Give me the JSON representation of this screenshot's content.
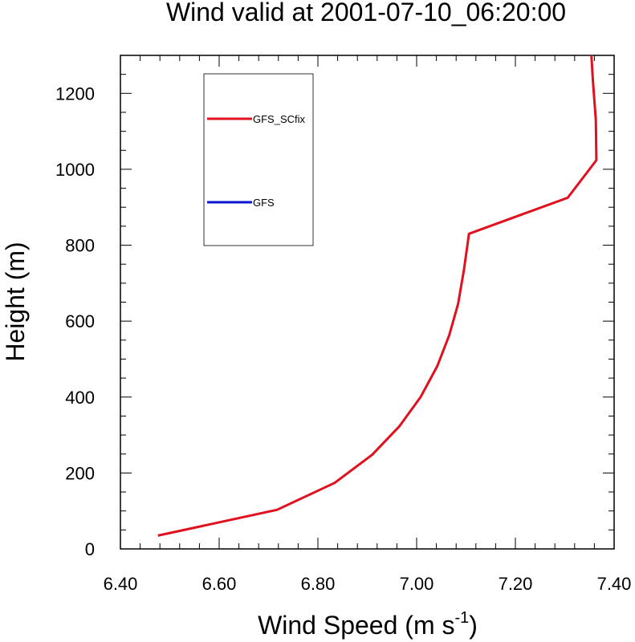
{
  "chart_data": {
    "type": "line",
    "title": "Wind valid at 2001-07-10_06:20:00",
    "xlabel": "Wind Speed (m s",
    "xlabel_sup": "-1",
    "xlabel_end": ")",
    "ylabel": "Height (m)",
    "xlim": [
      6.4,
      7.4
    ],
    "ylim": [
      0,
      1300
    ],
    "xticks": [
      6.4,
      6.6,
      6.8,
      7.0,
      7.2,
      7.4
    ],
    "xtick_labels": [
      "6.40",
      "6.60",
      "6.80",
      "7.00",
      "7.20",
      "7.40"
    ],
    "yticks": [
      0,
      200,
      400,
      600,
      800,
      1000,
      1200
    ],
    "ytick_labels": [
      "0",
      "200",
      "400",
      "600",
      "800",
      "1000",
      "1200"
    ],
    "grid": false,
    "legend_position": "top-left",
    "series": [
      {
        "name": "GFS_SCfix",
        "color": "#e0101e",
        "x": [
          6.476,
          6.717,
          6.834,
          6.91,
          6.965,
          7.008,
          7.042,
          7.066,
          7.084,
          7.096,
          7.106,
          7.306,
          7.364,
          7.363,
          7.357,
          7.354
        ],
        "y": [
          35,
          103,
          174,
          248,
          323,
          400,
          482,
          563,
          646,
          736,
          830,
          925,
          1024,
          1130,
          1232,
          1300
        ]
      },
      {
        "name": "GFS",
        "color": "#0a14d2",
        "x": [],
        "y": []
      }
    ]
  }
}
